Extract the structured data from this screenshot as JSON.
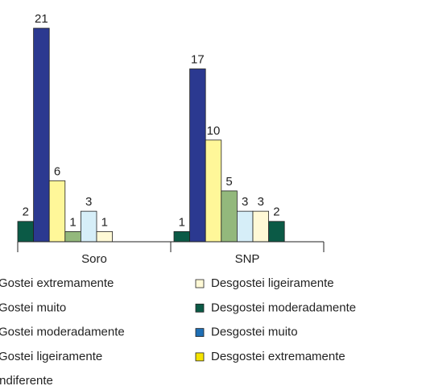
{
  "chart_data": {
    "type": "bar",
    "categories": [
      "Soro",
      "SNP"
    ],
    "ylim": [
      0,
      22
    ],
    "series": [
      {
        "name": "Gostei extremamente",
        "color": "#0b5a46",
        "values": [
          2,
          1
        ]
      },
      {
        "name": "Gostei muito",
        "color": "#2b3990",
        "values": [
          21,
          17
        ]
      },
      {
        "name": "Gostei moderadamente",
        "color": "#fff799",
        "values": [
          6,
          10
        ]
      },
      {
        "name": "Gostei ligeiramente",
        "color": "#93b87c",
        "values": [
          1,
          5
        ]
      },
      {
        "name": "Indiferente",
        "color": "#d6eef8",
        "values": [
          3,
          3
        ]
      },
      {
        "name": "Desgostei ligeiramente",
        "color": "#fff9d6",
        "values": [
          1,
          3
        ]
      },
      {
        "name": "Desgostei moderadamente",
        "color": "#0b5a46",
        "values": [
          0,
          2
        ]
      },
      {
        "name": "Desgostei muito",
        "color": "#1e6fb5",
        "values": [
          0,
          0
        ]
      },
      {
        "name": "Desgostei extremamente",
        "color": "#f5e400",
        "values": [
          0,
          0
        ]
      }
    ]
  }
}
